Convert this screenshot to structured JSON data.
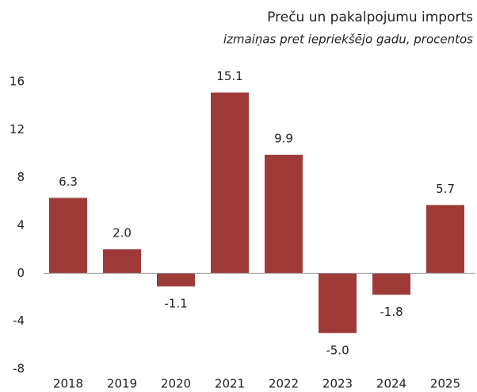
{
  "chart_data": {
    "type": "bar",
    "title": "Preču un pakalpojumu imports",
    "subtitle": "izmaiņas pret iepriekšējo gadu, procentos",
    "categories": [
      "2018",
      "2019",
      "2020",
      "2021",
      "2022",
      "2023",
      "2024",
      "2025"
    ],
    "values": [
      6.3,
      2.0,
      -1.1,
      15.1,
      9.9,
      -5.0,
      -1.8,
      5.7
    ],
    "value_labels": [
      "6.3",
      "2.0",
      "-1.1",
      "15.1",
      "9.9",
      "-5.0",
      "-1.8",
      "5.7"
    ],
    "color": "#9e3b39",
    "ylim": [
      -8,
      16
    ],
    "yticks": [
      -8,
      -4,
      0,
      4,
      8,
      12,
      16
    ],
    "grid": false
  }
}
